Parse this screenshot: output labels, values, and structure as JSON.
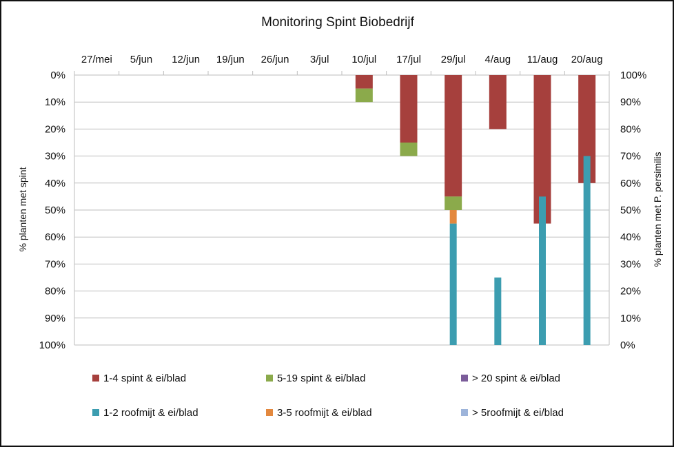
{
  "chart_data": {
    "type": "bar",
    "title": "Monitoring Spint Biobedrijf",
    "categories": [
      "27/mei",
      "5/jun",
      "12/jun",
      "19/jun",
      "26/jun",
      "3/jul",
      "10/jul",
      "17/jul",
      "29/jul",
      "4/aug",
      "11/aug",
      "20/aug"
    ],
    "y_left": {
      "label": "% planten met spint",
      "ticks": [
        "0%",
        "10%",
        "20%",
        "30%",
        "40%",
        "50%",
        "60%",
        "70%",
        "80%",
        "90%",
        "100%"
      ],
      "range": [
        0,
        100
      ],
      "inverted": true
    },
    "y_right": {
      "label": "% planten met P. persimilis",
      "ticks": [
        "100%",
        "90%",
        "80%",
        "70%",
        "60%",
        "50%",
        "40%",
        "30%",
        "20%",
        "10%",
        "0%"
      ],
      "range": [
        0,
        100
      ]
    },
    "series_spint": [
      {
        "name": "1-4 spint & ei/blad",
        "color": "#A6403D",
        "values": [
          0,
          0,
          0,
          0,
          0,
          0,
          5,
          25,
          45,
          20,
          55,
          40
        ]
      },
      {
        "name": "5-19 spint & ei/blad",
        "color": "#8BAA4B",
        "values": [
          0,
          0,
          0,
          0,
          0,
          0,
          5,
          5,
          5,
          0,
          0,
          0
        ]
      },
      {
        "name": "> 20 spint & ei/blad",
        "color": "#7B5C9A",
        "values": [
          0,
          0,
          0,
          0,
          0,
          0,
          0,
          0,
          0,
          0,
          0,
          0
        ]
      }
    ],
    "series_roofmijt": [
      {
        "name": "1-2 roofmijt & ei/blad",
        "color": "#3C9DB0",
        "values": [
          0,
          0,
          0,
          0,
          0,
          0,
          0,
          0,
          45,
          25,
          55,
          70
        ]
      },
      {
        "name": "3-5 roofmijt & ei/blad",
        "color": "#E3883E",
        "values": [
          0,
          0,
          0,
          0,
          0,
          0,
          0,
          0,
          5,
          0,
          0,
          0
        ]
      },
      {
        "name": "> 5roofmijt & ei/blad",
        "color": "#9DB4DA",
        "values": [
          0,
          0,
          0,
          0,
          0,
          0,
          0,
          0,
          0,
          0,
          0,
          0
        ]
      }
    ],
    "legend_position": "bottom",
    "grid": true
  }
}
